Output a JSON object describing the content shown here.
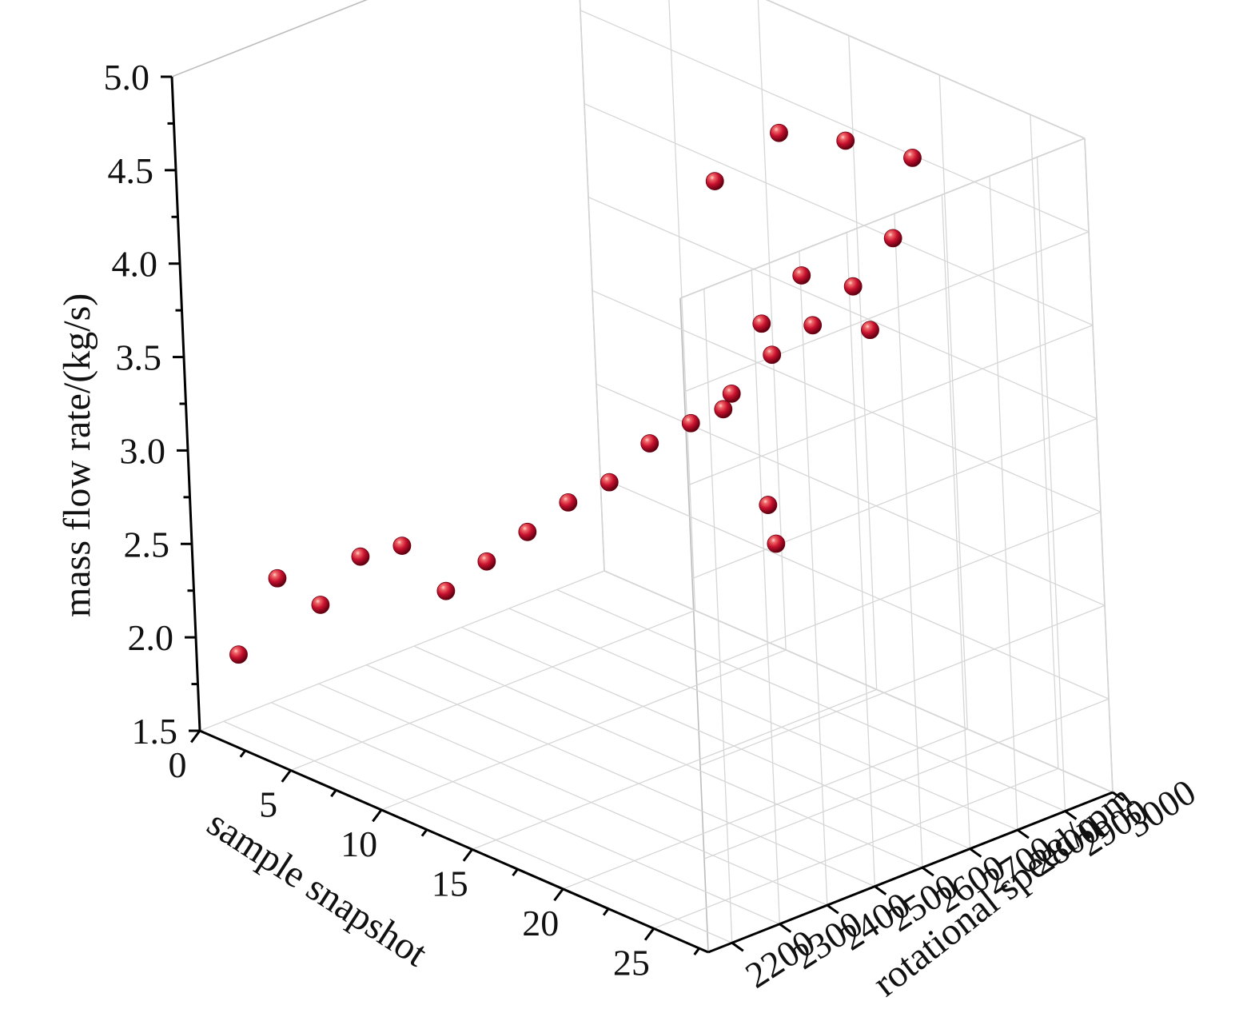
{
  "chart_data": {
    "type": "scatter",
    "title": "",
    "xlabel": "sample snapshot",
    "ylabel": "rotational speed/rpm",
    "zlabel": "mass flow rate/(kg/s)",
    "x_ticks": [
      "0",
      "5",
      "10",
      "15",
      "20",
      "25"
    ],
    "y_ticks": [
      "2200",
      "2300",
      "2400",
      "2500",
      "2600",
      "2700",
      "2800",
      "2900",
      "3000"
    ],
    "z_ticks": [
      "1.5",
      "2.0",
      "2.5",
      "3.0",
      "3.5",
      "4.0",
      "4.5",
      "5.0"
    ],
    "xlim": [
      0,
      28
    ],
    "ylim": [
      2150,
      3000
    ],
    "zlim": [
      1.5,
      5.0
    ],
    "grid": true,
    "marker_color": "#c8102e",
    "points": [
      {
        "x": 1,
        "y": 2200,
        "z": 1.9
      },
      {
        "x": 2,
        "y": 2250,
        "z": 2.3
      },
      {
        "x": 3,
        "y": 2300,
        "z": 2.15
      },
      {
        "x": 4,
        "y": 2350,
        "z": 2.4
      },
      {
        "x": 5,
        "y": 2400,
        "z": 2.45
      },
      {
        "x": 6,
        "y": 2450,
        "z": 2.2
      },
      {
        "x": 7,
        "y": 2500,
        "z": 2.35
      },
      {
        "x": 8,
        "y": 2550,
        "z": 2.5
      },
      {
        "x": 9,
        "y": 2600,
        "z": 2.65
      },
      {
        "x": 10,
        "y": 2650,
        "z": 2.75
      },
      {
        "x": 11,
        "y": 2700,
        "z": 2.95
      },
      {
        "x": 12,
        "y": 2750,
        "z": 3.05
      },
      {
        "x": 13,
        "y": 2800,
        "z": 3.2
      },
      {
        "x": 14,
        "y": 2850,
        "z": 3.4
      },
      {
        "x": 15,
        "y": 2900,
        "z": 3.55
      },
      {
        "x": 16,
        "y": 2950,
        "z": 3.75
      },
      {
        "x": 17,
        "y": 3000,
        "z": 4.0
      },
      {
        "x": 18,
        "y": 2600,
        "z": 4.75
      },
      {
        "x": 19,
        "y": 2700,
        "z": 4.95
      },
      {
        "x": 20,
        "y": 2800,
        "z": 4.85
      },
      {
        "x": 21,
        "y": 2900,
        "z": 4.7
      },
      {
        "x": 22,
        "y": 2450,
        "z": 3.85
      },
      {
        "x": 23,
        "y": 2500,
        "z": 4.3
      },
      {
        "x": 24,
        "y": 2550,
        "z": 4.55
      },
      {
        "x": 25,
        "y": 2650,
        "z": 4.2
      },
      {
        "x": 26,
        "y": 2400,
        "z": 3.35
      },
      {
        "x": 27,
        "y": 2350,
        "z": 3.65
      }
    ]
  }
}
